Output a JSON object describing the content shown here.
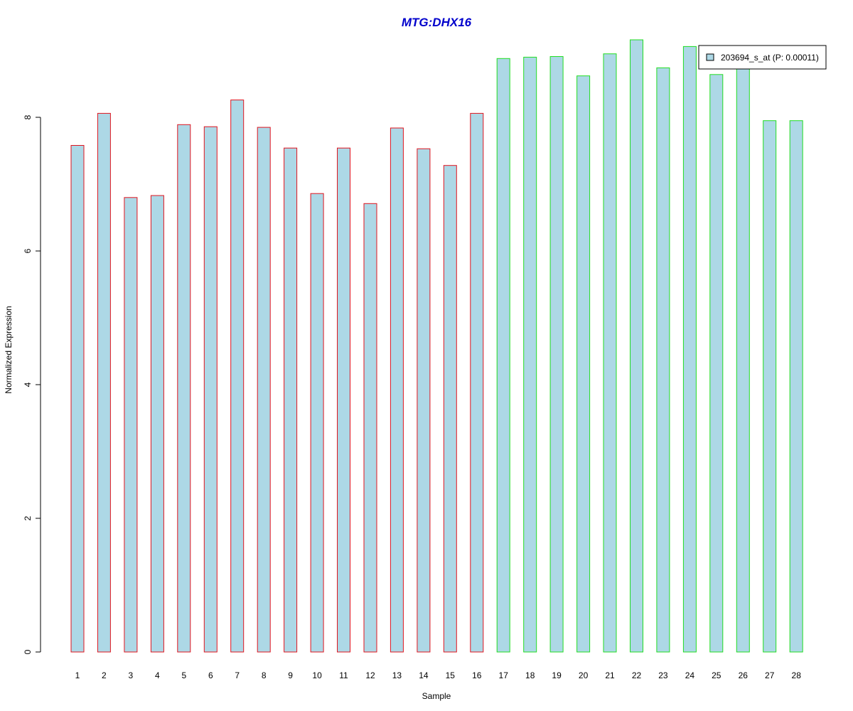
{
  "chart_data": {
    "type": "bar",
    "title": "MTG:DHX16",
    "xlabel": "Sample",
    "ylabel": "Normalized Expression",
    "categories": [
      "1",
      "2",
      "3",
      "4",
      "5",
      "6",
      "7",
      "8",
      "9",
      "10",
      "11",
      "12",
      "13",
      "14",
      "15",
      "16",
      "17",
      "18",
      "19",
      "20",
      "21",
      "22",
      "23",
      "24",
      "25",
      "26",
      "27",
      "28"
    ],
    "series": [
      {
        "name": "203694_s_at (P: 0.00011)",
        "values": [
          7.58,
          8.06,
          6.8,
          6.83,
          7.89,
          7.86,
          8.26,
          7.85,
          7.54,
          6.86,
          7.54,
          6.71,
          7.84,
          7.53,
          7.28,
          8.06,
          8.88,
          8.9,
          8.91,
          8.62,
          8.95,
          9.16,
          8.74,
          9.06,
          8.64,
          8.79,
          7.95,
          7.95
        ]
      }
    ],
    "group_border_colors": [
      "#e0141e",
      "#e0141e",
      "#e0141e",
      "#e0141e",
      "#e0141e",
      "#e0141e",
      "#e0141e",
      "#e0141e",
      "#e0141e",
      "#e0141e",
      "#e0141e",
      "#e0141e",
      "#e0141e",
      "#e0141e",
      "#e0141e",
      "#e0141e",
      "#22dd22",
      "#22dd22",
      "#22dd22",
      "#22dd22",
      "#22dd22",
      "#22dd22",
      "#22dd22",
      "#22dd22",
      "#22dd22",
      "#22dd22",
      "#22dd22",
      "#22dd22"
    ],
    "bar_fill": "#add8e6",
    "title_color": "#0000cc",
    "yticks": [
      "0",
      "2",
      "4",
      "6",
      "8"
    ],
    "ylim": [
      0,
      9.2
    ],
    "grid": false,
    "legend_position": "top-right"
  }
}
